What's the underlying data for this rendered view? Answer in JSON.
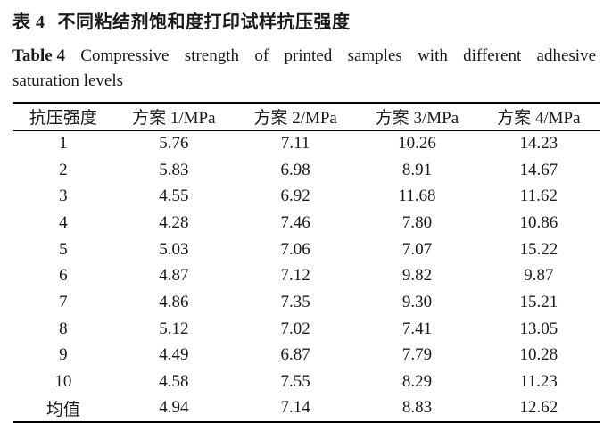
{
  "caption": {
    "zh_label": "表 4",
    "zh_title": "不同粘结剂饱和度打印试样抗压强度",
    "en_label": "Table 4",
    "en_title_line1": "Compressive strength of printed samples with different adhesive",
    "en_title_line2": "saturation levels"
  },
  "table": {
    "headers": [
      "抗压强度",
      "方案 1/MPa",
      "方案 2/MPa",
      "方案 3/MPa",
      "方案 4/MPa"
    ],
    "rows": [
      [
        "1",
        "5.76",
        "7.11",
        "10.26",
        "14.23"
      ],
      [
        "2",
        "5.83",
        "6.98",
        "8.91",
        "14.67"
      ],
      [
        "3",
        "4.55",
        "6.92",
        "11.68",
        "11.62"
      ],
      [
        "4",
        "4.28",
        "7.46",
        "7.80",
        "10.86"
      ],
      [
        "5",
        "5.03",
        "7.06",
        "7.07",
        "15.22"
      ],
      [
        "6",
        "4.87",
        "7.12",
        "9.82",
        "9.87"
      ],
      [
        "7",
        "4.86",
        "7.35",
        "9.30",
        "15.21"
      ],
      [
        "8",
        "5.12",
        "7.02",
        "7.41",
        "13.05"
      ],
      [
        "9",
        "4.49",
        "6.87",
        "7.79",
        "10.28"
      ],
      [
        "10",
        "4.58",
        "7.55",
        "8.29",
        "11.23"
      ],
      [
        "均值",
        "4.94",
        "7.14",
        "8.83",
        "12.62"
      ]
    ]
  },
  "chart_data": {
    "type": "table",
    "title": "Compressive strength of printed samples with different adhesive saturation levels",
    "columns": [
      "抗压强度",
      "方案 1/MPa",
      "方案 2/MPa",
      "方案 3/MPa",
      "方案 4/MPa"
    ],
    "sample_ids": [
      "1",
      "2",
      "3",
      "4",
      "5",
      "6",
      "7",
      "8",
      "9",
      "10",
      "均值"
    ],
    "series": [
      {
        "name": "方案 1/MPa",
        "values": [
          5.76,
          5.83,
          4.55,
          4.28,
          5.03,
          4.87,
          4.86,
          5.12,
          4.49,
          4.58,
          4.94
        ]
      },
      {
        "name": "方案 2/MPa",
        "values": [
          7.11,
          6.98,
          6.92,
          7.46,
          7.06,
          7.12,
          7.35,
          7.02,
          6.87,
          7.55,
          7.14
        ]
      },
      {
        "name": "方案 3/MPa",
        "values": [
          10.26,
          8.91,
          11.68,
          7.8,
          7.07,
          9.82,
          9.3,
          7.41,
          7.79,
          8.29,
          8.83
        ]
      },
      {
        "name": "方案 4/MPa",
        "values": [
          14.23,
          14.67,
          11.62,
          10.86,
          15.22,
          9.87,
          15.21,
          13.05,
          10.28,
          11.23,
          12.62
        ]
      }
    ]
  }
}
